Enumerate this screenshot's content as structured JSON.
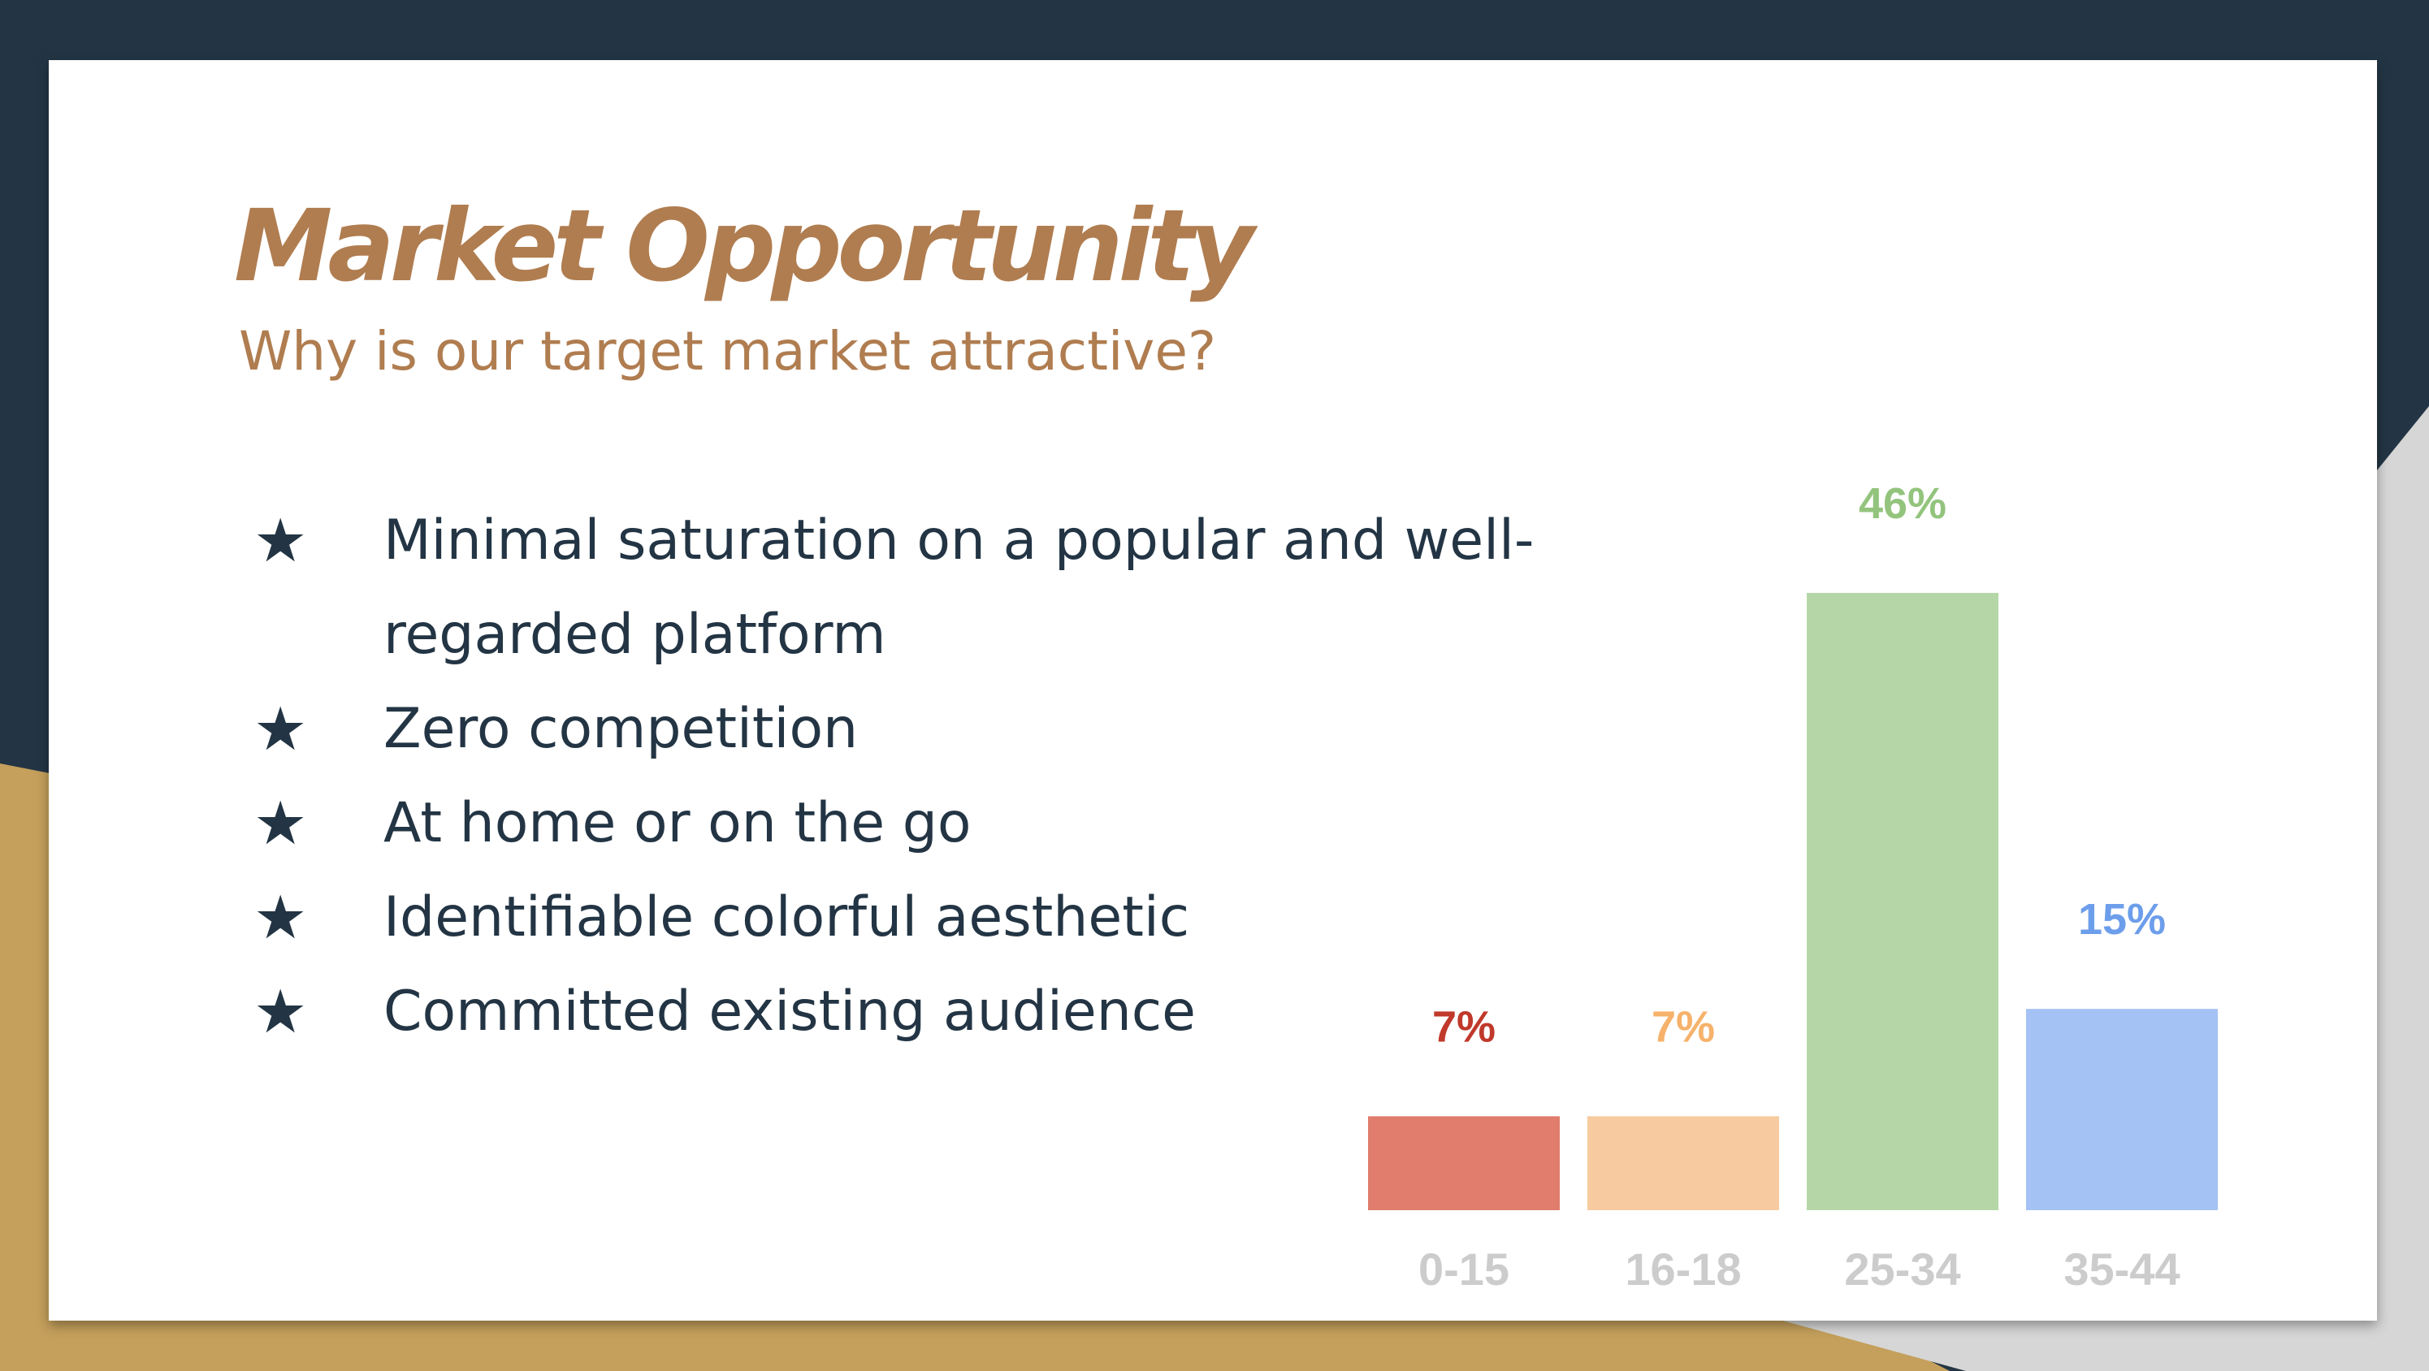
{
  "slide": {
    "title": "Market Opportunity",
    "subtitle": "Why is our target market attractive?",
    "bullets": [
      "Minimal saturation on a popular and well-regarded platform",
      "Zero competition",
      "At home or on the go",
      "Identifiable colorful aesthetic",
      "Committed existing audience"
    ],
    "bullet_icon": "star-icon",
    "colors": {
      "accent": "#b07d50",
      "text": "#233544",
      "frame_dark": "#233544",
      "frame_gold": "#c4a05c",
      "frame_gray": "#d6d6d6"
    }
  },
  "chart_data": {
    "type": "bar",
    "categories": [
      "0-15",
      "16-18",
      "25-34",
      "35-44"
    ],
    "values": [
      7,
      7,
      46,
      15
    ],
    "data_labels": [
      "7%",
      "7%",
      "46%",
      "15%"
    ],
    "bar_colors": [
      "#e07d6c",
      "#f7cb9f",
      "#b5d7a7",
      "#a4c2f4"
    ],
    "label_colors": [
      "#c0392b",
      "#f6b26b",
      "#93c47d",
      "#6d9eeb"
    ],
    "tick_color": "#cccccc",
    "ylim": [
      0,
      46
    ],
    "grid": false,
    "legend": "none"
  }
}
